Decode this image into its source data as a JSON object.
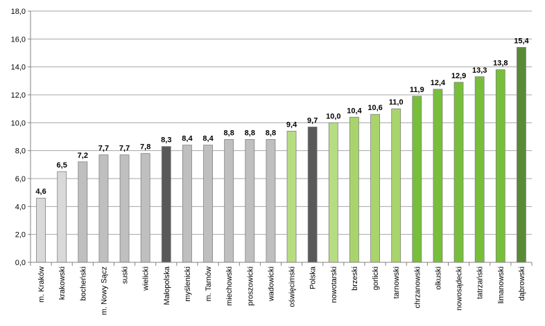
{
  "chart_data": {
    "type": "bar",
    "categories": [
      "m. Kraków",
      "krakowski",
      "bocheński",
      "m. Nowy Sącz",
      "suski",
      "wielicki",
      "Małopolska",
      "myślenicki",
      "m. Tarnów",
      "miechowski",
      "proszowicki",
      "wadowicki",
      "oświęcimski",
      "Polska",
      "nowotarski",
      "brzeski",
      "gorlicki",
      "tarnowski",
      "chrzanowski",
      "olkuski",
      "nowosądecki",
      "tatrzański",
      "limanowski",
      "dąbrowski"
    ],
    "values": [
      4.6,
      6.5,
      7.2,
      7.7,
      7.7,
      7.8,
      8.3,
      8.4,
      8.4,
      8.8,
      8.8,
      8.8,
      9.4,
      9.7,
      10.0,
      10.4,
      10.6,
      11.0,
      11.9,
      12.4,
      12.9,
      13.3,
      13.8,
      15.4
    ],
    "value_labels": [
      "4,6",
      "6,5",
      "7,2",
      "7,7",
      "7,7",
      "7,8",
      "8,3",
      "8,4",
      "8,4",
      "8,8",
      "8,8",
      "8,8",
      "9,4",
      "9,7",
      "10,0",
      "10,4",
      "10,6",
      "11,0",
      "11,9",
      "12,4",
      "12,9",
      "13,3",
      "13,8",
      "15,4"
    ],
    "colors": [
      "#d9d9d9",
      "#d9d9d9",
      "#bfbfbf",
      "#bfbfbf",
      "#bfbfbf",
      "#bfbfbf",
      "#595959",
      "#bfbfbf",
      "#bfbfbf",
      "#bfbfbf",
      "#bfbfbf",
      "#bfbfbf",
      "#b7dd82",
      "#595959",
      "#b7dd82",
      "#a9d46b",
      "#a9d46b",
      "#a9d46b",
      "#77bf3a",
      "#77bf3a",
      "#77bf3a",
      "#77bf3a",
      "#77bf3a",
      "#5a8a35"
    ],
    "ylim": [
      0,
      18
    ],
    "yticks": [
      0,
      2,
      4,
      6,
      8,
      10,
      12,
      14,
      16,
      18
    ],
    "ytick_labels": [
      "0,0",
      "2,0",
      "4,0",
      "6,0",
      "8,0",
      "10,0",
      "12,0",
      "14,0",
      "16,0",
      "18,0"
    ],
    "grid": true,
    "title": "",
    "xlabel": "",
    "ylabel": ""
  }
}
